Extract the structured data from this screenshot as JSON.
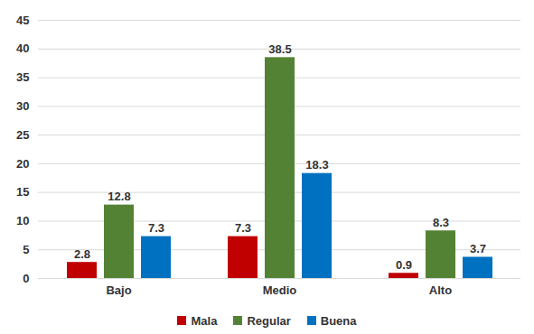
{
  "chart_data": {
    "type": "bar",
    "categories": [
      "Bajo",
      "Medio",
      "Alto"
    ],
    "series": [
      {
        "name": "Mala",
        "color": "#c00000",
        "values": [
          2.8,
          7.3,
          0.9
        ]
      },
      {
        "name": "Regular",
        "color": "#548235",
        "values": [
          12.8,
          38.5,
          8.3
        ]
      },
      {
        "name": "Buena",
        "color": "#0070c0",
        "values": [
          7.3,
          18.3,
          3.7
        ]
      }
    ],
    "ylim": [
      0,
      45
    ],
    "yticks": [
      0,
      5,
      10,
      15,
      20,
      25,
      30,
      35,
      40,
      45
    ],
    "grid": true,
    "legend": "bottom",
    "data_labels": true
  }
}
